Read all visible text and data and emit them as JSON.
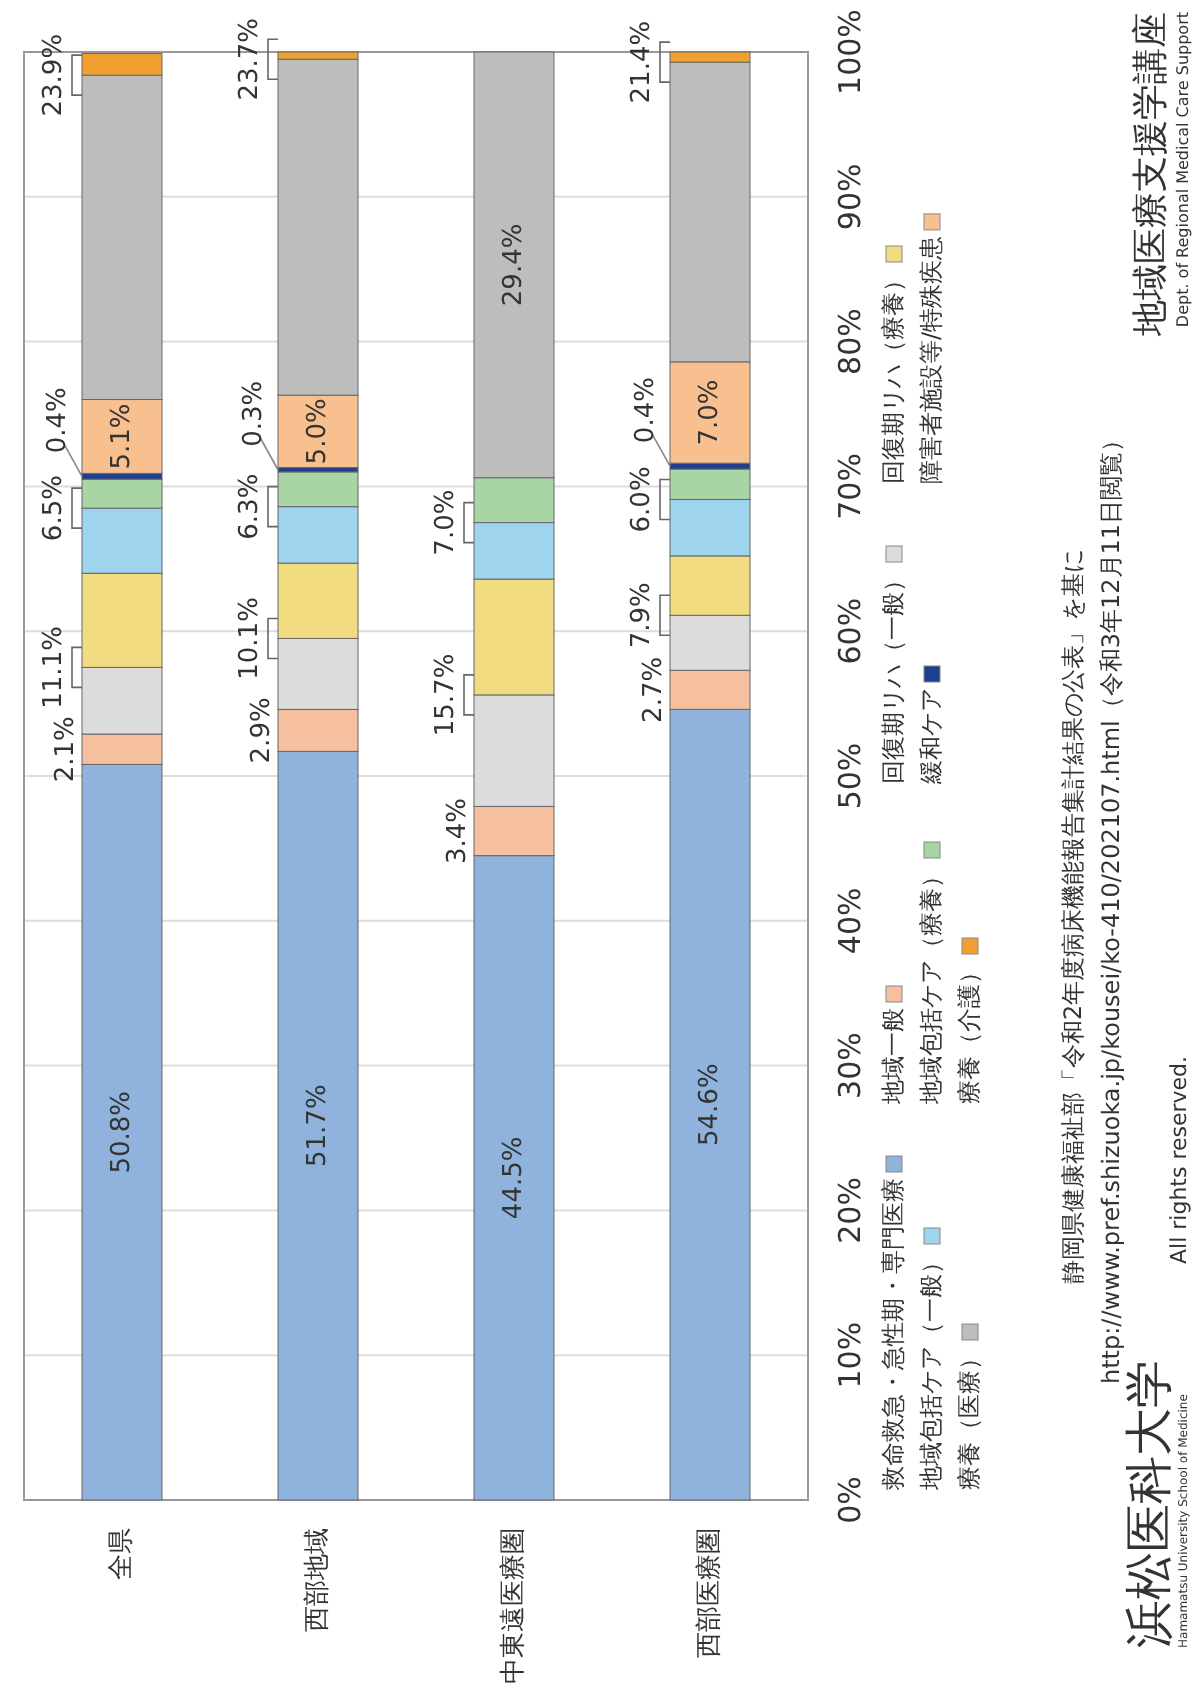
{
  "chart_data": {
    "type": "bar",
    "stacked": true,
    "categories": [
      "全県",
      "西部地域",
      "中東遠医療圏",
      "西部医療圏"
    ],
    "series": [
      {
        "name": "救命救急・急性期・専門医療",
        "color": "#8fb3dc",
        "values": [
          50.8,
          51.7,
          44.5,
          54.6
        ],
        "value_labels": [
          "50.8%",
          "51.7%",
          "44.5%",
          "54.6%"
        ]
      },
      {
        "name": "地域一般",
        "color": "#f6bfa0",
        "values": [
          2.1,
          2.9,
          3.4,
          2.7
        ],
        "value_labels": [
          "2.1%",
          "2.9%",
          "3.4%",
          "2.7%"
        ]
      },
      {
        "name": "回復期リハ（一般）",
        "color": "#dcdcdc",
        "values": [
          4.6,
          4.9,
          7.7,
          3.8
        ]
      },
      {
        "name": "回復期リハ（療養）",
        "color": "#f2dc82",
        "values": [
          6.5,
          5.2,
          8.0,
          4.1
        ]
      },
      {
        "name": "地域包括ケア（一般）",
        "color": "#9fd4ef",
        "values": [
          4.5,
          3.9,
          3.9,
          3.9
        ]
      },
      {
        "name": "地域包括ケア（療養）",
        "color": "#a9d4a4",
        "values": [
          2.0,
          2.4,
          3.1,
          2.1
        ]
      },
      {
        "name": "緩和ケア",
        "color": "#1f3f8f",
        "values": [
          0.4,
          0.3,
          0,
          0.4
        ],
        "value_labels": [
          "0.4%",
          "0.3%",
          null,
          "0.4%"
        ]
      },
      {
        "name": "障害者施設等/特殊疾患",
        "color": "#f9c08f",
        "values": [
          5.1,
          5.0,
          0,
          7.0
        ],
        "value_labels": [
          "5.1%",
          "5.0%",
          null,
          "7.0%"
        ]
      },
      {
        "name": "療養（医療）",
        "color": "#bdbdbd",
        "values": [
          22.4,
          23.2,
          29.4,
          20.7
        ],
        "value_labels": [
          null,
          null,
          "29.4%",
          null
        ]
      },
      {
        "name": "療養（介護）",
        "color": "#f0a030",
        "values": [
          1.5,
          0.5,
          0,
          0.7
        ]
      }
    ],
    "ylim": [
      0,
      100
    ],
    "yticks": [
      {
        "value": 0,
        "label": "0%"
      },
      {
        "value": 10,
        "label": "10%"
      },
      {
        "value": 20,
        "label": "20%"
      },
      {
        "value": 30,
        "label": "30%"
      },
      {
        "value": 40,
        "label": "40%"
      },
      {
        "value": 50,
        "label": "50%"
      },
      {
        "value": 60,
        "label": "60%"
      },
      {
        "value": 70,
        "label": "70%"
      },
      {
        "value": 80,
        "label": "80%"
      },
      {
        "value": 90,
        "label": "90%"
      },
      {
        "value": 100,
        "label": "100%"
      }
    ],
    "grid": "y",
    "legend": "right",
    "annotations": [
      {
        "text": "11.1%",
        "x": "全県",
        "y": 57.5
      },
      {
        "text": "6.5%",
        "x": "全県",
        "y": 68.5
      },
      {
        "text": "23.9%",
        "x": "全県",
        "y": 98.4
      },
      {
        "text": "10.1%",
        "x": "西部地域",
        "y": 59.5
      },
      {
        "text": "6.3%",
        "x": "西部地域",
        "y": 68.6
      },
      {
        "text": "23.7%",
        "x": "西部地域",
        "y": 99.5
      },
      {
        "text": "15.7%",
        "x": "中東遠医療圏",
        "y": 55.6
      },
      {
        "text": "7.0%",
        "x": "中東遠医療圏",
        "y": 67.5
      },
      {
        "text": "7.9%",
        "x": "西部医療圏",
        "y": 61.1
      },
      {
        "text": "6.0%",
        "x": "西部医療圏",
        "y": 69.1
      },
      {
        "text": "21.4%",
        "x": "西部医療圏",
        "y": 99.3
      },
      "静岡県健康福祉部「令和2年度病床機能報告集計結果の公表」を基に",
      "http://www.pref.shizuoka.jp/kousei/ko-410/202107.html（令和3年12月11日閲覧）",
      "浜松医科大学",
      "Hamamatsu University School of Medicine",
      "All rights reserved.",
      "地域医療支援学講座",
      "Dept. of Regional Medical Care Support"
    ]
  }
}
